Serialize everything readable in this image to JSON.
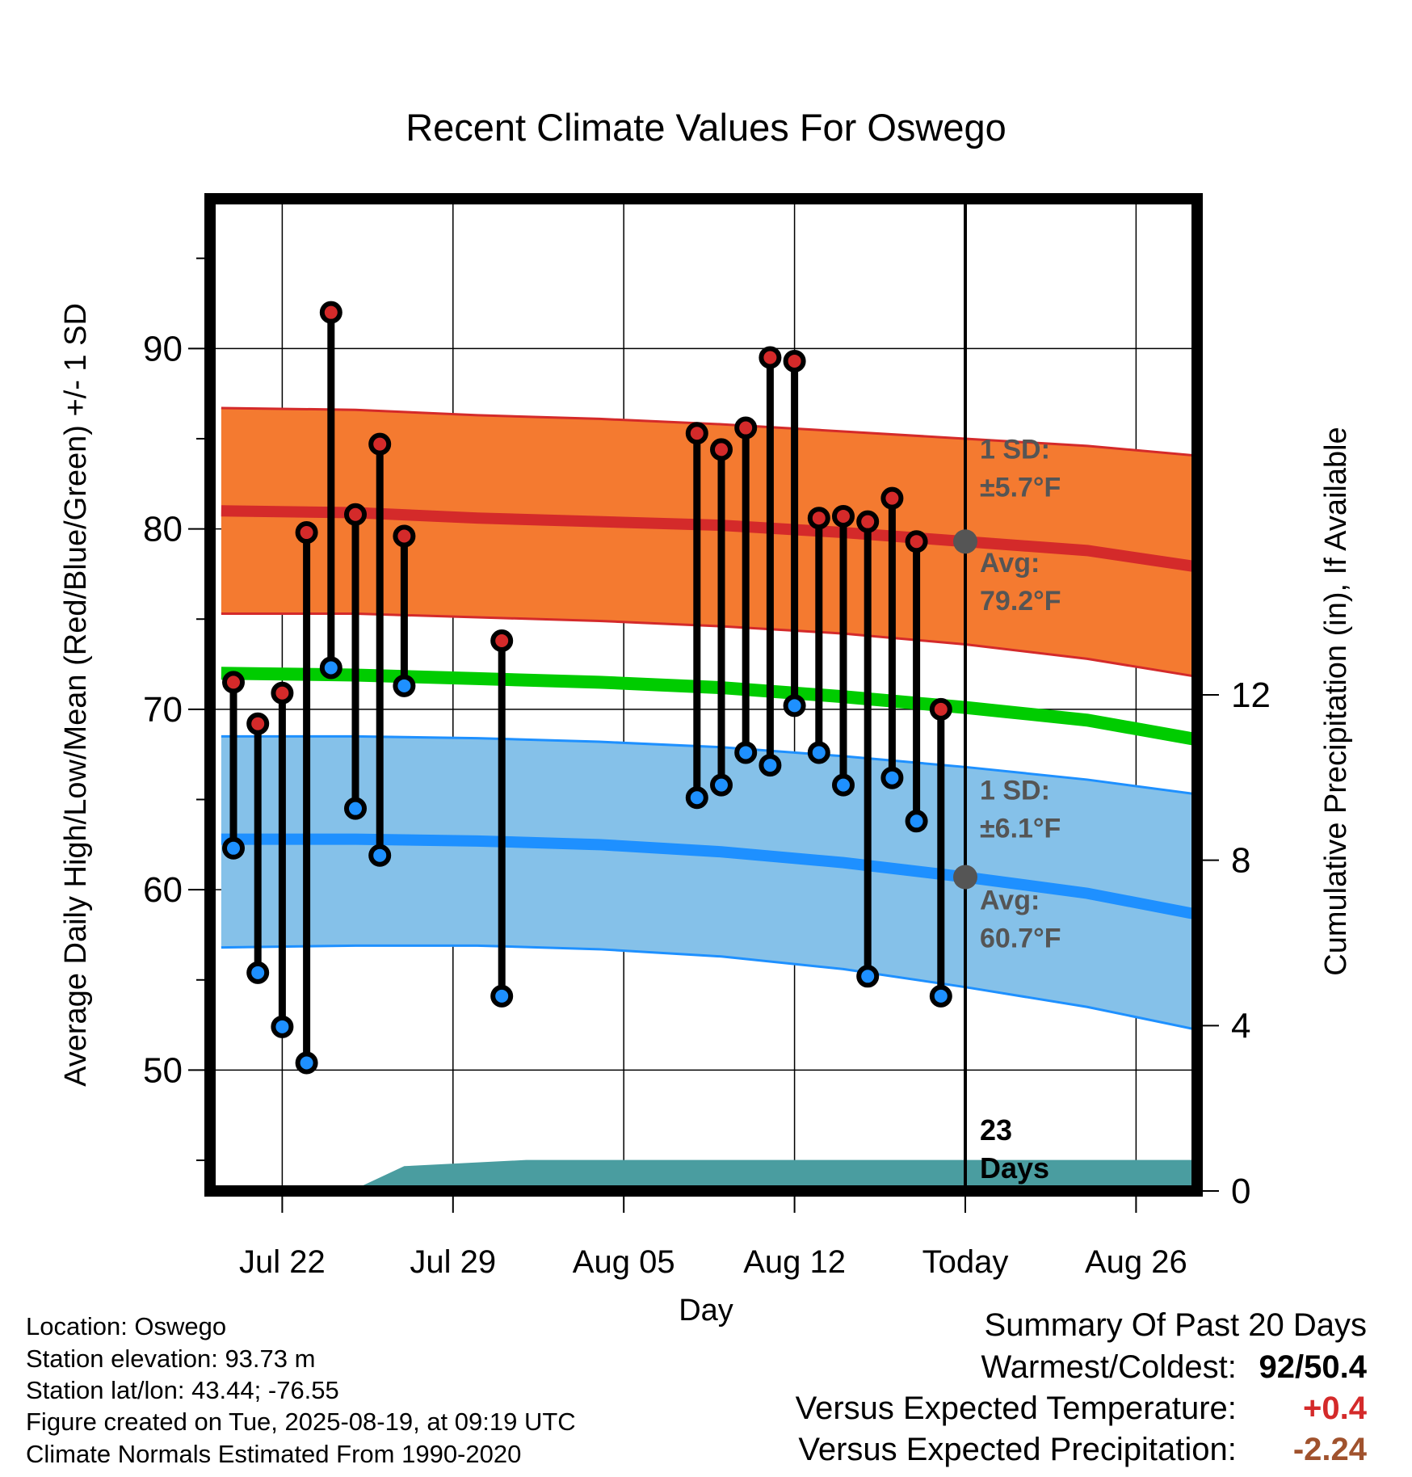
{
  "chart_data": {
    "type": "line",
    "title": "Recent Climate Values For Oswego",
    "xlabel": "Day",
    "ylabel": "Average Daily High/Low/Mean (Red/Blue/Green) +/- 1 SD",
    "ylabel_right": "Cumulative Precipitation (in), If Available",
    "x_ticks": [
      "Jul 22",
      "Jul 29",
      "Aug 05",
      "Aug 12",
      "Today",
      "Aug 26"
    ],
    "x_tick_days": [
      2,
      9,
      16,
      23,
      30,
      37
    ],
    "xlim": [
      -0.5,
      40
    ],
    "ylim": [
      43.3,
      98.3
    ],
    "y_ticks": [
      50,
      60,
      70,
      80,
      90
    ],
    "y_ticks_right": [
      0,
      4,
      8,
      12
    ],
    "precip_ylim": [
      0,
      24
    ],
    "today_day": 30,
    "normals_days": [
      -0.5,
      5,
      10,
      15,
      20,
      25,
      30,
      35,
      40
    ],
    "normal_high": [
      81.0,
      80.9,
      80.6,
      80.4,
      80.2,
      79.8,
      79.3,
      78.8,
      77.8
    ],
    "normal_high_upper": [
      86.7,
      86.6,
      86.3,
      86.1,
      85.8,
      85.4,
      85.0,
      84.6,
      84.0
    ],
    "normal_high_lower": [
      75.3,
      75.3,
      75.1,
      74.9,
      74.6,
      74.2,
      73.6,
      72.8,
      71.7
    ],
    "normal_mean": [
      72.0,
      71.9,
      71.7,
      71.5,
      71.2,
      70.7,
      70.1,
      69.4,
      68.2
    ],
    "normal_low": [
      62.8,
      62.8,
      62.7,
      62.5,
      62.1,
      61.5,
      60.7,
      59.8,
      58.5
    ],
    "normal_low_upper": [
      68.5,
      68.5,
      68.4,
      68.2,
      67.9,
      67.4,
      66.8,
      66.1,
      65.2
    ],
    "normal_low_lower": [
      56.8,
      56.9,
      56.9,
      56.7,
      56.3,
      55.6,
      54.6,
      53.5,
      52.1
    ],
    "observations": [
      {
        "day": 0,
        "high": 71.5,
        "low": 62.3
      },
      {
        "day": 1,
        "high": 69.2,
        "low": 55.4
      },
      {
        "day": 2,
        "high": 70.9,
        "low": 52.4
      },
      {
        "day": 3,
        "high": 79.8,
        "low": 50.4
      },
      {
        "day": 4,
        "high": 92.0,
        "low": 72.3
      },
      {
        "day": 5,
        "high": 80.8,
        "low": 64.5
      },
      {
        "day": 6,
        "high": 84.7,
        "low": 61.9
      },
      {
        "day": 7,
        "high": 79.6,
        "low": 71.3
      },
      {
        "day": 11,
        "high": 73.8,
        "low": 54.1
      },
      {
        "day": 19,
        "high": 85.3,
        "low": 65.1
      },
      {
        "day": 20,
        "high": 84.4,
        "low": 65.8
      },
      {
        "day": 21,
        "high": 85.6,
        "low": 67.6
      },
      {
        "day": 22,
        "high": 89.5,
        "low": 66.9
      },
      {
        "day": 23,
        "high": 89.3,
        "low": 70.2
      },
      {
        "day": 24,
        "high": 80.6,
        "low": 67.6
      },
      {
        "day": 25,
        "high": 80.7,
        "low": 65.8
      },
      {
        "day": 26,
        "high": 80.4,
        "low": 55.2
      },
      {
        "day": 27,
        "high": 81.7,
        "low": 66.2
      },
      {
        "day": 28,
        "high": 79.3,
        "low": 63.8
      },
      {
        "day": 29,
        "high": 70.0,
        "low": 54.1
      }
    ],
    "precip_days": [
      0,
      5,
      7,
      12,
      40
    ],
    "precip_cum": [
      0.05,
      0.05,
      0.6,
      0.75,
      0.75
    ],
    "annotations": {
      "high_sd_label": "1 SD:",
      "high_sd_value": "±5.7°F",
      "high_avg_label": "Avg:",
      "high_avg_value": "79.2°F",
      "low_sd_label": "1 SD:",
      "low_sd_value": "±6.1°F",
      "low_avg_label": "Avg:",
      "low_avg_value": "60.7°F",
      "days_count": "23",
      "days_word": "Days"
    },
    "colors": {
      "high_band": "#f47a30",
      "high_line": "#d42a2a",
      "mean_line": "#00cc00",
      "low_band": "#85c1e9",
      "low_line": "#1e90ff",
      "precip": "#4a9da0",
      "high_marker": "#d42a2a",
      "low_marker": "#1e90ff",
      "annotation": "#555555"
    }
  },
  "info": {
    "location": "Location: Oswego",
    "elevation": "Station elevation: 93.73 m",
    "latlon": "Station lat/lon: 43.44; -76.55",
    "created": "Figure created on Tue, 2025-08-19, at 09:19 UTC",
    "normals": "Climate Normals Estimated From 1990-2020"
  },
  "summary": {
    "heading": "Summary Of Past 20 Days",
    "warm_cold_label": "Warmest/Coldest:",
    "warm_cold_value": "92/50.4",
    "temp_label": "Versus Expected Temperature:",
    "temp_value": "+0.4",
    "temp_color": "#d42a2a",
    "precip_label": "Versus Expected Precipitation:",
    "precip_value": "-2.24",
    "precip_color": "#a0522d"
  }
}
